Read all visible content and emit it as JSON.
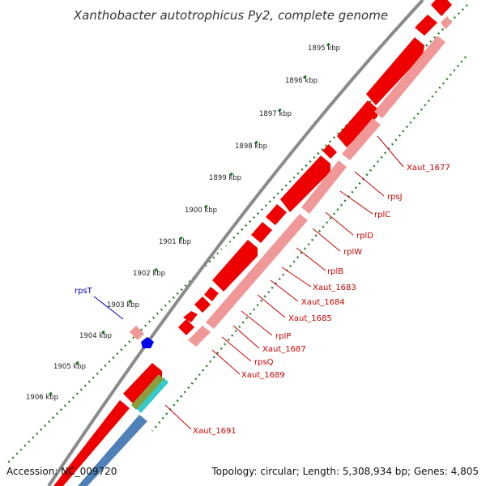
{
  "title": "Xanthobacter autotrophicus Py2, complete genome",
  "footer": {
    "accession": "Accession: NC_009720",
    "summary": "Topology: circular; Length: 5,308,934 bp; Genes: 4,805"
  },
  "ticks": [
    {
      "label": "1895 kbp"
    },
    {
      "label": "1896 kbp"
    },
    {
      "label": "1897 kbp"
    },
    {
      "label": "1898 kbp"
    },
    {
      "label": "1899 kbp"
    },
    {
      "label": "1900 kbp"
    },
    {
      "label": "1901 kbp"
    },
    {
      "label": "1902 kbp"
    },
    {
      "label": "1903 kbp"
    },
    {
      "label": "1904 kbp"
    },
    {
      "label": "1905 kbp"
    },
    {
      "label": "1906 kbp"
    }
  ],
  "genes": [
    {
      "label": "Xaut_1677"
    },
    {
      "label": "rpsJ"
    },
    {
      "label": "rplC"
    },
    {
      "label": "rplD"
    },
    {
      "label": "rplW"
    },
    {
      "label": "rplB"
    },
    {
      "label": "Xaut_1683"
    },
    {
      "label": "Xaut_1684"
    },
    {
      "label": "Xaut_1685"
    },
    {
      "label": "rplP"
    },
    {
      "label": "Xaut_1687"
    },
    {
      "label": "rpsQ"
    },
    {
      "label": "Xaut_1689"
    },
    {
      "label": "Xaut_1691"
    },
    {
      "label": "rpsT"
    }
  ],
  "colors": {
    "background": "#ffffff",
    "backbone": "#8a8a8a",
    "cds": "#ee0000",
    "cds_light": "#f09898",
    "rrna_blue": "#4f80b8",
    "trna_cyan": "#35c9c9",
    "olive": "#8b9e3c",
    "reverse_gene": "#0000ee",
    "tick_green": "#2d7d2d",
    "forward_label": "#cc0000",
    "reverse_label": "#0000cc"
  }
}
